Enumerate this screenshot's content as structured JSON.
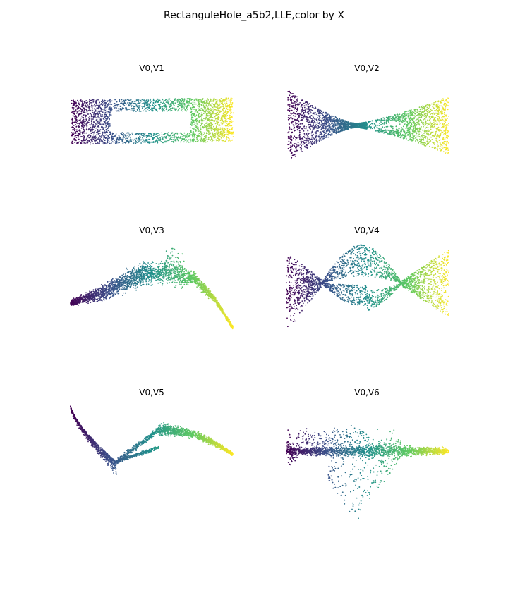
{
  "figure": {
    "title": "RectanguleHole_a5b2,LLE,color by X"
  },
  "colormap": {
    "name": "viridis",
    "stops": [
      "#440154",
      "#3b528b",
      "#21918c",
      "#5ec962",
      "#fde725"
    ]
  },
  "chart_data": [
    {
      "type": "scatter",
      "title": "V0,V1",
      "xlabel": "",
      "ylabel": "",
      "grid": false,
      "axes_visible": false,
      "shape": "rectangle-with-hole"
    },
    {
      "type": "scatter",
      "title": "V0,V2",
      "xlabel": "",
      "ylabel": "",
      "grid": false,
      "axes_visible": false,
      "shape": "bowtie"
    },
    {
      "type": "scatter",
      "title": "V0,V3",
      "xlabel": "",
      "ylabel": "",
      "grid": false,
      "axes_visible": false,
      "shape": "arc"
    },
    {
      "type": "scatter",
      "title": "V0,V4",
      "xlabel": "",
      "ylabel": "",
      "grid": false,
      "axes_visible": false,
      "shape": "double-twist"
    },
    {
      "type": "scatter",
      "title": "V0,V5",
      "xlabel": "",
      "ylabel": "",
      "grid": false,
      "axes_visible": false,
      "shape": "s-curve"
    },
    {
      "type": "scatter",
      "title": "V0,V6",
      "xlabel": "",
      "ylabel": "",
      "grid": false,
      "axes_visible": false,
      "shape": "band-with-fan"
    }
  ]
}
